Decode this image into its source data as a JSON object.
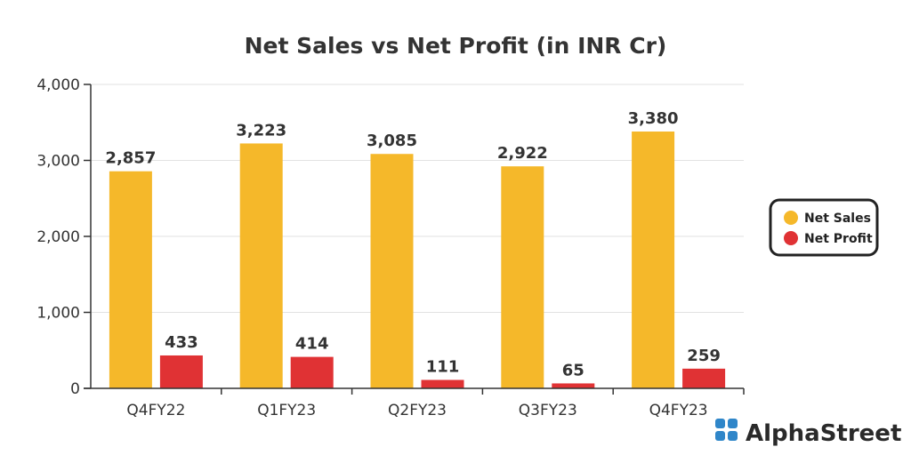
{
  "chart_data": {
    "type": "bar",
    "title": "Net Sales vs Net Profit (in INR Cr)",
    "categories": [
      "Q4FY22",
      "Q1FY23",
      "Q2FY23",
      "Q3FY23",
      "Q4FY23"
    ],
    "series": [
      {
        "name": "Net Sales",
        "values": [
          2857,
          3223,
          3085,
          2922,
          3380
        ],
        "labels": [
          "2,857",
          "3,223",
          "3,085",
          "2,922",
          "3,380"
        ],
        "color": "#F5B82A"
      },
      {
        "name": "Net Profit",
        "values": [
          433,
          414,
          111,
          65,
          259
        ],
        "labels": [
          "433",
          "414",
          "111",
          "65",
          "259"
        ],
        "color": "#E03234"
      }
    ],
    "ylim": [
      0,
      4000
    ],
    "yticks": [
      0,
      1000,
      2000,
      3000,
      4000
    ],
    "ytick_labels": [
      "0",
      "1,000",
      "2,000",
      "3,000",
      "4,000"
    ],
    "xlabel": "",
    "ylabel": "",
    "grid": true,
    "legend": "right"
  },
  "brand": {
    "name": "AlphaStreet",
    "icon": "alphastreet-logo-icon",
    "icon_color": "#2F86C9"
  }
}
